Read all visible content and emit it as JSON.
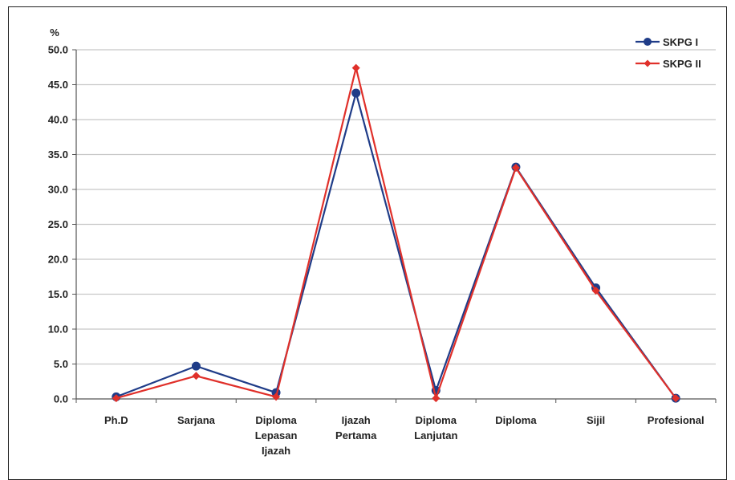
{
  "chart_data": {
    "type": "line",
    "ylabel": "%",
    "ylim": [
      0,
      50
    ],
    "yticks": [
      "0.0",
      "5.0",
      "10.0",
      "15.0",
      "20.0",
      "25.0",
      "30.0",
      "35.0",
      "40.0",
      "45.0",
      "50.0"
    ],
    "categories": [
      [
        "Ph.D"
      ],
      [
        "Sarjana"
      ],
      [
        "Diploma",
        "Lepasan",
        "Ijazah"
      ],
      [
        "Ijazah",
        "Pertama"
      ],
      [
        "Diploma",
        "Lanjutan"
      ],
      [
        "Diploma"
      ],
      [
        "Sijil"
      ],
      [
        "Profesional"
      ]
    ],
    "grid": true,
    "legend_position": "top-right",
    "series": [
      {
        "name": "SKPG I",
        "color": "#1f3c88",
        "marker": "circle",
        "values": [
          0.3,
          4.7,
          0.9,
          43.8,
          1.2,
          33.2,
          15.9,
          0.1
        ]
      },
      {
        "name": "SKPG II",
        "color": "#e0302a",
        "marker": "diamond",
        "values": [
          0.1,
          3.3,
          0.3,
          47.4,
          0.1,
          33.1,
          15.5,
          0.1
        ]
      }
    ]
  }
}
